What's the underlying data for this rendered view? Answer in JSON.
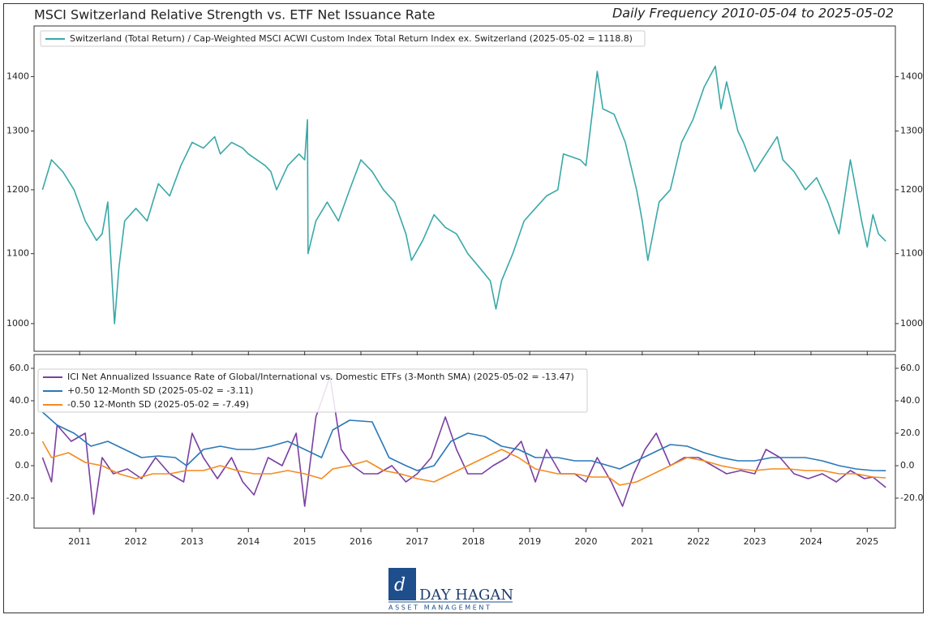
{
  "chart_data": [
    {
      "type": "line",
      "title": "MSCI Switzerland Relative Strength vs. ETF Net Issuance Rate",
      "subtitle": "Daily Frequency 2010-05-04 to 2025-05-02",
      "log": true,
      "xlim": [
        2010.19,
        2025.5
      ],
      "ylim": [
        963,
        1500
      ],
      "yticks": [
        1000,
        1100,
        1200,
        1300,
        1400
      ],
      "legend": "upper left",
      "series": [
        {
          "name": "Switzerland (Total Return) / Cap-Weighted MSCI ACWI Custom Index Total Return Index ex. Switzerland (2025-05-02 = 1118.8)",
          "color": "#3aa8a8",
          "x": [
            2010.34,
            2010.5,
            2010.7,
            2010.9,
            2011.1,
            2011.3,
            2011.4,
            2011.5,
            2011.55,
            2011.62,
            2011.7,
            2011.8,
            2012.0,
            2012.2,
            2012.4,
            2012.6,
            2012.8,
            2013.0,
            2013.2,
            2013.4,
            2013.5,
            2013.7,
            2013.9,
            2014.0,
            2014.3,
            2014.4,
            2014.5,
            2014.7,
            2014.9,
            2015.0,
            2015.05,
            2015.06,
            2015.2,
            2015.4,
            2015.6,
            2015.8,
            2016.0,
            2016.2,
            2016.4,
            2016.6,
            2016.8,
            2016.9,
            2017.1,
            2017.3,
            2017.5,
            2017.7,
            2017.9,
            2018.1,
            2018.3,
            2018.4,
            2018.5,
            2018.7,
            2018.9,
            2019.1,
            2019.3,
            2019.5,
            2019.6,
            2019.9,
            2020.0,
            2020.2,
            2020.3,
            2020.5,
            2020.7,
            2020.9,
            2021.0,
            2021.1,
            2021.3,
            2021.5,
            2021.7,
            2021.9,
            2022.1,
            2022.3,
            2022.4,
            2022.5,
            2022.7,
            2022.8,
            2023.0,
            2023.2,
            2023.4,
            2023.5,
            2023.7,
            2023.9,
            2024.1,
            2024.3,
            2024.5,
            2024.7,
            2024.8,
            2024.9,
            2025.0,
            2025.1,
            2025.2,
            2025.33
          ],
          "values": [
            1200,
            1250,
            1230,
            1200,
            1150,
            1120,
            1130,
            1180,
            1100,
            1000,
            1080,
            1150,
            1170,
            1150,
            1210,
            1190,
            1240,
            1280,
            1270,
            1290,
            1260,
            1280,
            1270,
            1260,
            1240,
            1230,
            1200,
            1240,
            1260,
            1250,
            1320,
            1100,
            1150,
            1180,
            1150,
            1200,
            1250,
            1230,
            1200,
            1180,
            1130,
            1090,
            1120,
            1160,
            1140,
            1130,
            1100,
            1080,
            1060,
            1020,
            1060,
            1100,
            1150,
            1170,
            1190,
            1200,
            1260,
            1250,
            1240,
            1410,
            1340,
            1330,
            1280,
            1200,
            1150,
            1090,
            1180,
            1200,
            1280,
            1320,
            1380,
            1420,
            1340,
            1390,
            1300,
            1280,
            1230,
            1260,
            1290,
            1250,
            1230,
            1200,
            1220,
            1180,
            1130,
            1250,
            1200,
            1150,
            1110,
            1160,
            1130,
            1118.8
          ]
        }
      ]
    },
    {
      "type": "line",
      "xlim": [
        2010.19,
        2025.5
      ],
      "ylim": [
        -38.5,
        68.5
      ],
      "yticks": [
        {
          "value": -20,
          "label": "-20.0"
        },
        {
          "value": 0,
          "label": "0.0"
        },
        {
          "value": 20,
          "label": "20.0"
        },
        {
          "value": 40,
          "label": "40.0"
        },
        {
          "value": 60,
          "label": "60.0"
        }
      ],
      "xticks": [
        2011,
        2012,
        2013,
        2014,
        2015,
        2016,
        2017,
        2018,
        2019,
        2020,
        2021,
        2022,
        2023,
        2024,
        2025
      ],
      "legend": "upper left",
      "series": [
        {
          "name": "ICI Net Annualized Issuance Rate of Global/International vs. Domestic ETFs (3-Month SMA) (2025-05-02 = -13.47)",
          "color": "#7b3fa1",
          "x": [
            2010.34,
            2010.5,
            2010.6,
            2010.85,
            2011.1,
            2011.25,
            2011.4,
            2011.6,
            2011.85,
            2012.1,
            2012.35,
            2012.6,
            2012.85,
            2013.0,
            2013.2,
            2013.45,
            2013.7,
            2013.9,
            2014.1,
            2014.35,
            2014.6,
            2014.85,
            2015.0,
            2015.2,
            2015.45,
            2015.65,
            2015.85,
            2016.05,
            2016.3,
            2016.55,
            2016.8,
            2017.0,
            2017.25,
            2017.5,
            2017.7,
            2017.9,
            2018.15,
            2018.35,
            2018.6,
            2018.85,
            2019.1,
            2019.3,
            2019.55,
            2019.8,
            2020.0,
            2020.2,
            2020.45,
            2020.65,
            2020.85,
            2021.05,
            2021.25,
            2021.5,
            2021.75,
            2022.0,
            2022.25,
            2022.5,
            2022.75,
            2023.0,
            2023.2,
            2023.45,
            2023.7,
            2023.95,
            2024.2,
            2024.45,
            2024.7,
            2024.95,
            2025.1,
            2025.33
          ],
          "values": [
            5,
            -10,
            25,
            15,
            20,
            -30,
            5,
            -5,
            -2,
            -8,
            5,
            -5,
            -10,
            20,
            5,
            -8,
            5,
            -10,
            -18,
            5,
            0,
            20,
            -25,
            30,
            55,
            10,
            0,
            -5,
            -5,
            0,
            -10,
            -5,
            5,
            30,
            10,
            -5,
            -5,
            0,
            5,
            15,
            -10,
            10,
            -5,
            -5,
            -10,
            5,
            -10,
            -25,
            -5,
            10,
            20,
            0,
            5,
            5,
            0,
            -5,
            -3,
            -5,
            10,
            5,
            -5,
            -8,
            -5,
            -10,
            -3,
            -8,
            -7,
            -13.47
          ]
        },
        {
          "name": "+0.50 12-Month SD (2025-05-02 = -3.11)",
          "color": "#2a78b8",
          "x": [
            2010.34,
            2010.6,
            2010.9,
            2011.2,
            2011.5,
            2011.8,
            2012.1,
            2012.4,
            2012.7,
            2012.9,
            2013.2,
            2013.5,
            2013.8,
            2014.1,
            2014.4,
            2014.7,
            2015.0,
            2015.3,
            2015.5,
            2015.8,
            2016.2,
            2016.5,
            2016.8,
            2017.0,
            2017.3,
            2017.6,
            2017.9,
            2018.2,
            2018.5,
            2018.8,
            2019.1,
            2019.5,
            2019.8,
            2020.1,
            2020.4,
            2020.6,
            2020.9,
            2021.2,
            2021.5,
            2021.8,
            2022.1,
            2022.4,
            2022.7,
            2023.0,
            2023.3,
            2023.6,
            2023.9,
            2024.2,
            2024.5,
            2024.8,
            2025.1,
            2025.33
          ],
          "values": [
            33,
            25,
            20,
            12,
            15,
            10,
            5,
            6,
            5,
            0,
            10,
            12,
            10,
            10,
            12,
            15,
            10,
            5,
            22,
            28,
            27,
            5,
            0,
            -3,
            0,
            15,
            20,
            18,
            12,
            10,
            5,
            5,
            3,
            3,
            0,
            -2,
            3,
            8,
            13,
            12,
            8,
            5,
            3,
            3,
            5,
            5,
            5,
            3,
            0,
            -2,
            -3,
            -3.11
          ]
        },
        {
          "name": "-0.50 12-Month SD (2025-05-02 = -7.49)",
          "color": "#f58a1f",
          "x": [
            2010.34,
            2010.5,
            2010.8,
            2011.1,
            2011.4,
            2011.7,
            2012.0,
            2012.3,
            2012.6,
            2012.9,
            2013.2,
            2013.5,
            2013.8,
            2014.1,
            2014.4,
            2014.7,
            2015.0,
            2015.3,
            2015.5,
            2015.8,
            2016.1,
            2016.4,
            2016.7,
            2017.0,
            2017.3,
            2017.6,
            2017.9,
            2018.2,
            2018.5,
            2018.8,
            2019.1,
            2019.5,
            2019.8,
            2020.1,
            2020.4,
            2020.6,
            2020.9,
            2021.2,
            2021.5,
            2021.8,
            2022.1,
            2022.4,
            2022.7,
            2023.0,
            2023.3,
            2023.6,
            2023.9,
            2024.2,
            2024.5,
            2024.8,
            2025.1,
            2025.33
          ],
          "values": [
            15,
            5,
            8,
            2,
            0,
            -5,
            -8,
            -5,
            -5,
            -3,
            -3,
            0,
            -3,
            -5,
            -5,
            -3,
            -5,
            -8,
            -2,
            0,
            3,
            -3,
            -5,
            -8,
            -10,
            -5,
            0,
            5,
            10,
            5,
            -2,
            -5,
            -5,
            -7,
            -7,
            -12,
            -10,
            -5,
            0,
            5,
            3,
            0,
            -2,
            -3,
            -2,
            -2,
            -3,
            -3,
            -5,
            -5,
            -7,
            -7.49
          ]
        }
      ]
    }
  ],
  "logo": {
    "name": "DAY HAGAN",
    "tagline": "ASSET MANAGEMENT"
  }
}
